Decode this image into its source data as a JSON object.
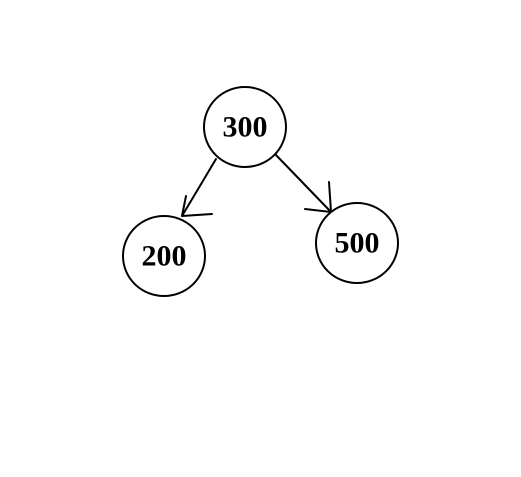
{
  "tree": {
    "root": {
      "label": "300"
    },
    "left_child": {
      "label": "200"
    },
    "right_child": {
      "label": "500"
    }
  },
  "edges": [
    {
      "from": "300",
      "to": "200"
    },
    {
      "from": "300",
      "to": "500"
    }
  ],
  "colors": {
    "background": "#ffffff",
    "stroke": "#000000",
    "text": "#000000"
  }
}
